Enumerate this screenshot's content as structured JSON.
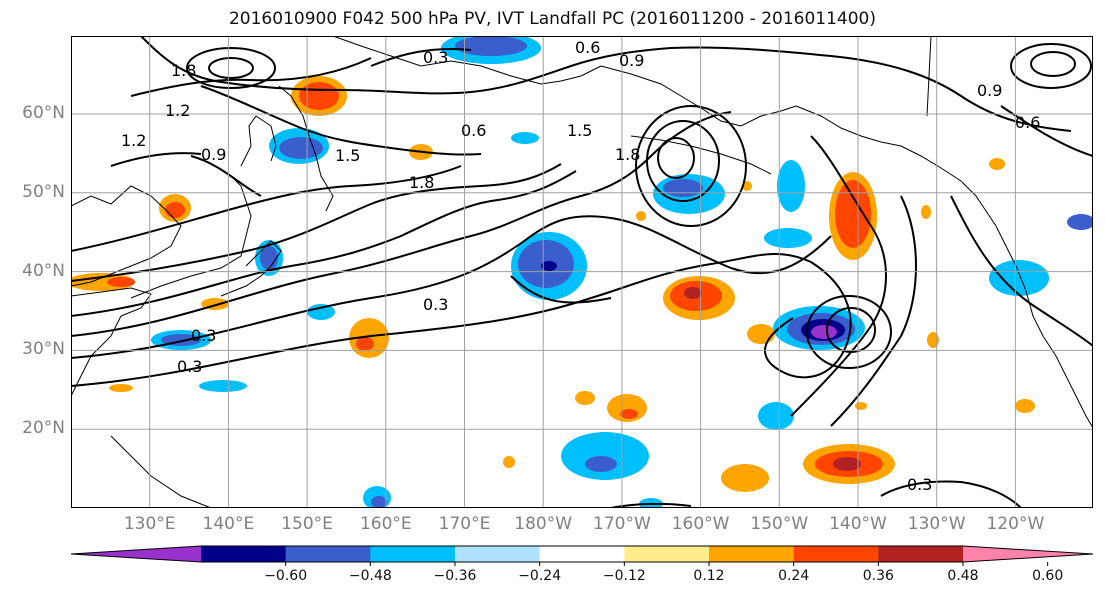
{
  "title": "2016010900 F042 500 hPa PV, IVT Landfall PC (2016011200 - 2016011400)",
  "map": {
    "lat_labels": [
      {
        "text": "60°N",
        "lat": 60
      },
      {
        "text": "50°N",
        "lat": 50
      },
      {
        "text": "40°N",
        "lat": 40
      },
      {
        "text": "30°N",
        "lat": 30
      },
      {
        "text": "20°N",
        "lat": 20
      }
    ],
    "lon_labels": [
      {
        "text": "130°E",
        "lon": 130
      },
      {
        "text": "140°E",
        "lon": 140
      },
      {
        "text": "150°E",
        "lon": 150
      },
      {
        "text": "160°E",
        "lon": 160
      },
      {
        "text": "170°E",
        "lon": 170
      },
      {
        "text": "180°W",
        "lon": 180
      },
      {
        "text": "170°W",
        "lon": 190
      },
      {
        "text": "160°W",
        "lon": 200
      },
      {
        "text": "150°W",
        "lon": 210
      },
      {
        "text": "140°W",
        "lon": 220
      },
      {
        "text": "130°W",
        "lon": 230
      },
      {
        "text": "120°W",
        "lon": 240
      }
    ],
    "contour_labels": [
      "0.3",
      "0.6",
      "0.9",
      "1.2",
      "1.5",
      "1.8"
    ],
    "grid_color": "#a0a0a0",
    "land_color": "#000000"
  },
  "colorbar": {
    "ticks": [
      "−0.60",
      "−0.48",
      "−0.36",
      "−0.24",
      "−0.12",
      "0.12",
      "0.24",
      "0.36",
      "0.48",
      "0.60"
    ],
    "colors": [
      "#9932cc",
      "#00008b",
      "#3a5fcd",
      "#00bfff",
      "#b0e2ff",
      "#ffffff",
      "#ffec8b",
      "#ffa500",
      "#ff4500",
      "#b22222",
      "#ff82ab"
    ]
  }
}
